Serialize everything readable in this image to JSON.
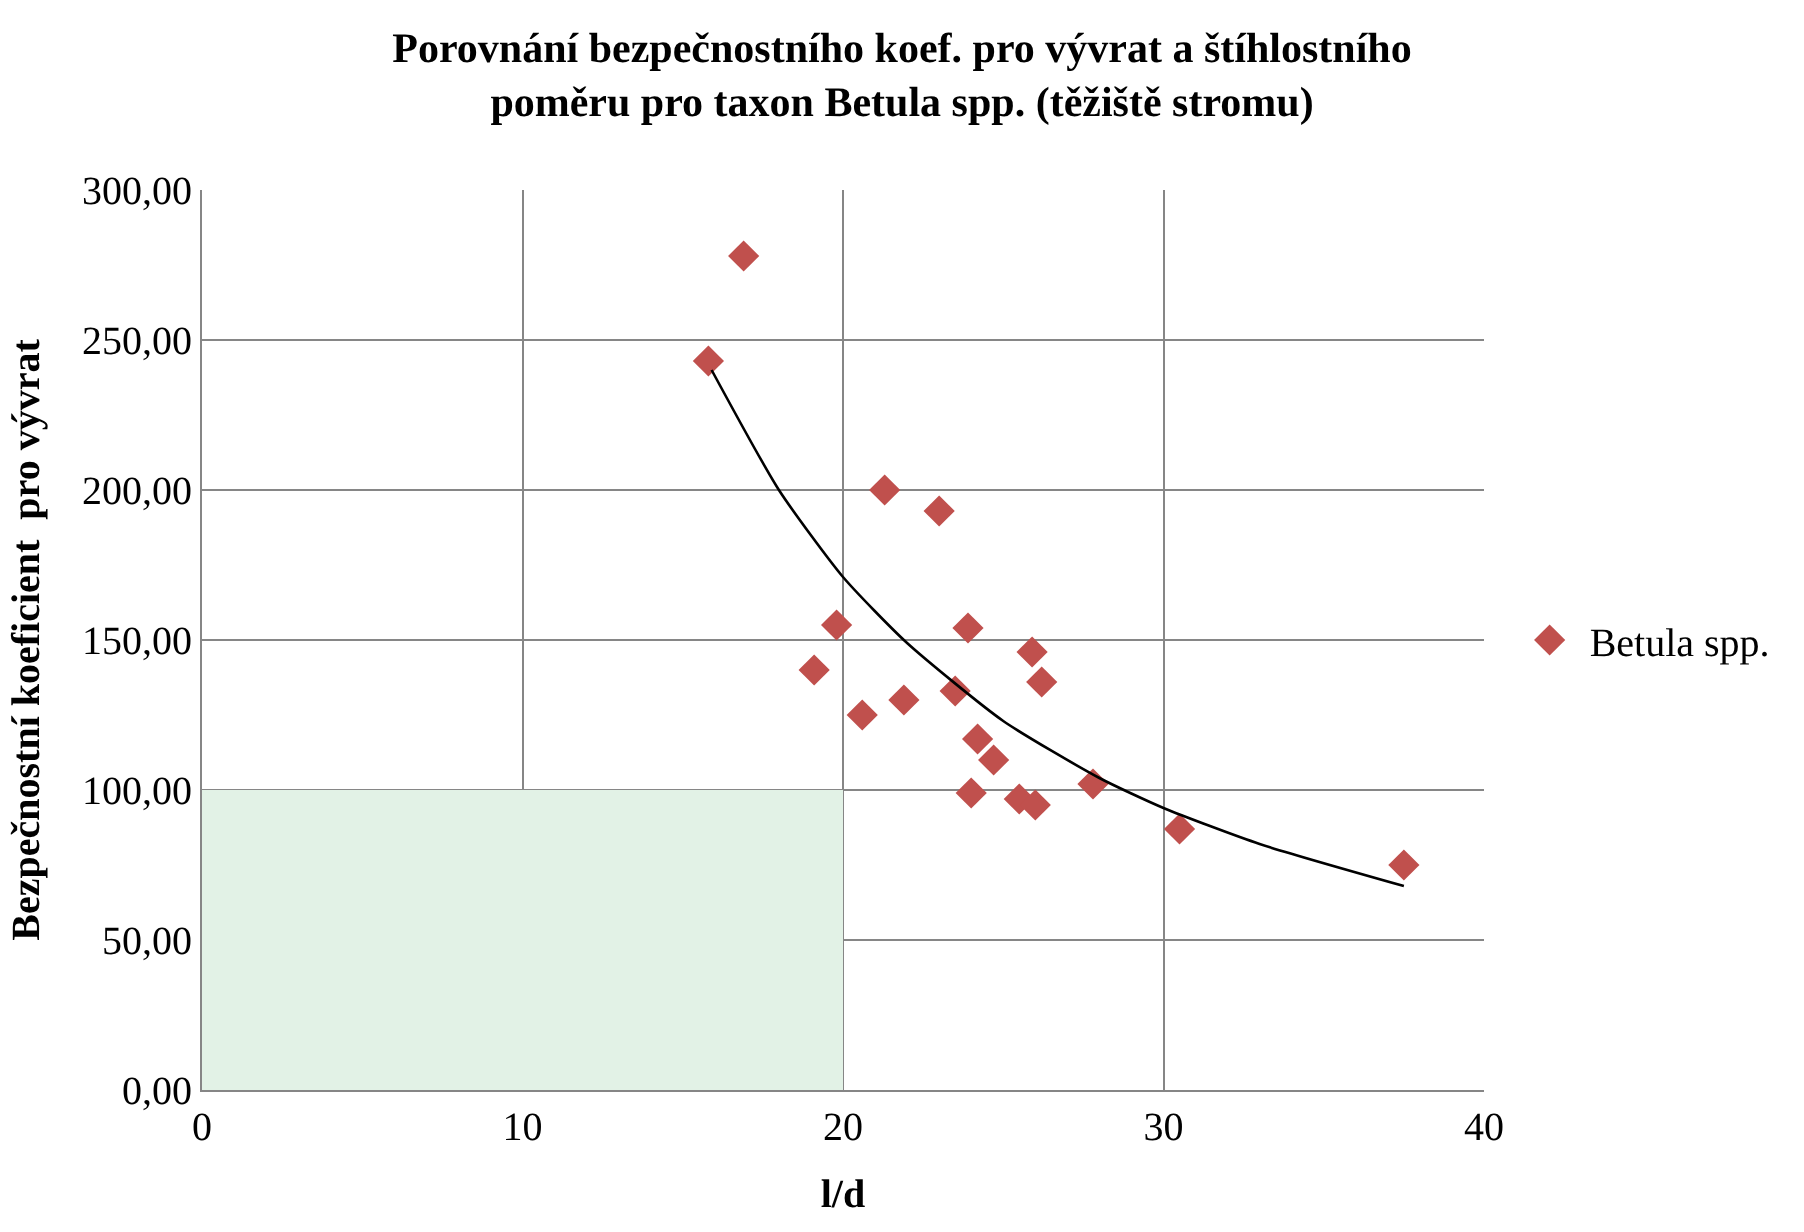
{
  "chart_data": {
    "type": "scatter",
    "title": "Porovnání bezpečnostního koef. pro vývrat a štíhlostního\npoměru pro taxon Betula spp. (těžiště stromu)",
    "xlabel": "l/d",
    "ylabel": "Bezpečnostní koeficient  pro vývrat",
    "series": [
      {
        "type": "area",
        "marker": "none",
        "color": "#e2f2e6",
        "x": [
          0,
          20
        ],
        "values": [
          100,
          100
        ]
      },
      {
        "name": "Betula spp.",
        "color": "#c0504d",
        "x": [
          15.8,
          16.9,
          21.3,
          23.0,
          19.8,
          19.1,
          20.6,
          21.9,
          23.9,
          23.5,
          25.9,
          26.2,
          24.2,
          24.0,
          25.5,
          26.0,
          24.7,
          27.8,
          30.5,
          37.5
        ],
        "values": [
          243,
          278,
          200,
          193,
          155,
          140,
          125,
          130,
          154,
          133,
          146,
          136,
          117,
          99,
          97,
          95,
          110,
          102,
          87,
          75
        ]
      },
      {
        "type": "line",
        "marker": "none",
        "color": "#000000",
        "x": [
          15.9,
          18,
          20,
          22,
          25,
          28,
          30,
          33,
          37.5
        ],
        "values": [
          240,
          200,
          171,
          149,
          123,
          104,
          94,
          82,
          68
        ]
      }
    ],
    "xlim": [
      0,
      40
    ],
    "xticks": [
      0,
      10,
      20,
      30,
      40
    ],
    "ylim": [
      0,
      300
    ],
    "yticks": [
      {
        "value": 0,
        "label": "0,00"
      },
      {
        "value": 50,
        "label": "50,00"
      },
      {
        "value": 100,
        "label": "100,00"
      },
      {
        "value": 150,
        "label": "150,00"
      },
      {
        "value": 200,
        "label": "200,00"
      },
      {
        "value": 250,
        "label": "250,00"
      },
      {
        "value": 300,
        "label": "300,00"
      }
    ],
    "grid": true,
    "legend": "right",
    "marker": "diamond"
  }
}
